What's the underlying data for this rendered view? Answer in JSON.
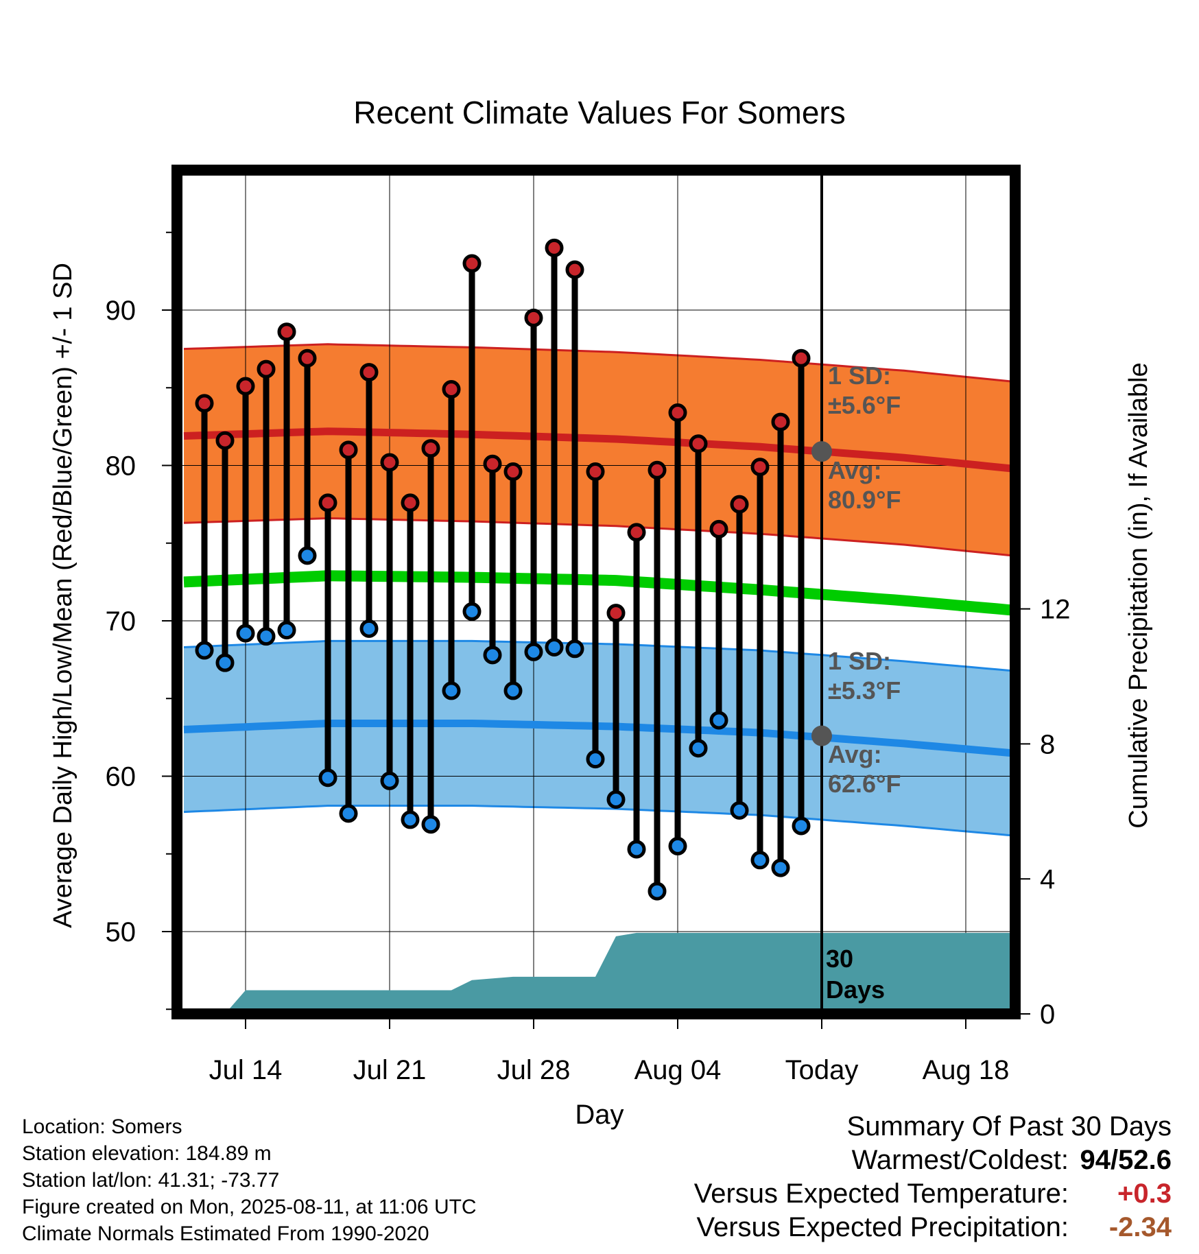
{
  "chart_data": {
    "type": "line",
    "title": "Recent Climate Values For Somers",
    "xlabel": "Day",
    "ylabel": "Average Daily High/Low/Mean (Red/Blue/Green) +/- 1 SD",
    "y2label": "Cumulative Precipitation (in), If Available",
    "x_ticks": [
      "Jul 14",
      "Jul 21",
      "Jul 28",
      "Aug 04",
      "Today",
      "Aug 18"
    ],
    "y_ticks": [
      50,
      60,
      70,
      80,
      90
    ],
    "y2_ticks": [
      0,
      4,
      8,
      12
    ],
    "ylim": [
      45.2,
      98.8
    ],
    "y2lim": [
      0,
      23.5
    ],
    "x_range_days": [
      "Jul 11",
      "Aug 21"
    ],
    "grid": true,
    "series": [
      {
        "name": "High",
        "color": "#c8252b",
        "dates": [
          "Jul 12",
          "Jul 13",
          "Jul 14",
          "Jul 15",
          "Jul 16",
          "Jul 17",
          "Jul 18",
          "Jul 19",
          "Jul 20",
          "Jul 21",
          "Jul 22",
          "Jul 23",
          "Jul 24",
          "Jul 25",
          "Jul 26",
          "Jul 27",
          "Jul 28",
          "Jul 29",
          "Jul 30",
          "Jul 31",
          "Aug 01",
          "Aug 02",
          "Aug 03",
          "Aug 04",
          "Aug 05",
          "Aug 06",
          "Aug 07",
          "Aug 08",
          "Aug 09",
          "Aug 10"
        ],
        "values": [
          84.0,
          81.6,
          85.1,
          86.2,
          88.6,
          86.9,
          77.6,
          81.0,
          86.0,
          80.2,
          77.6,
          81.1,
          84.9,
          93.0,
          80.1,
          79.6,
          89.5,
          94.0,
          92.6,
          79.6,
          70.5,
          75.7,
          79.7,
          83.4,
          81.4,
          75.9,
          77.5,
          79.9,
          82.8,
          86.9
        ]
      },
      {
        "name": "Low",
        "color": "#1e88e5",
        "dates": [
          "Jul 12",
          "Jul 13",
          "Jul 14",
          "Jul 15",
          "Jul 16",
          "Jul 17",
          "Jul 18",
          "Jul 19",
          "Jul 20",
          "Jul 21",
          "Jul 22",
          "Jul 23",
          "Jul 24",
          "Jul 25",
          "Jul 26",
          "Jul 27",
          "Jul 28",
          "Jul 29",
          "Jul 30",
          "Jul 31",
          "Aug 01",
          "Aug 02",
          "Aug 03",
          "Aug 04",
          "Aug 05",
          "Aug 06",
          "Aug 07",
          "Aug 08",
          "Aug 09",
          "Aug 10"
        ],
        "values": [
          68.1,
          67.3,
          69.2,
          69.0,
          69.4,
          74.2,
          59.9,
          57.6,
          69.5,
          59.7,
          57.2,
          56.9,
          65.5,
          70.6,
          67.8,
          65.5,
          68.0,
          68.3,
          68.2,
          61.1,
          58.5,
          55.3,
          52.6,
          55.5,
          61.8,
          63.6,
          57.8,
          54.6,
          54.1,
          56.8
        ]
      },
      {
        "name": "Normal High",
        "color": "#cc2020",
        "anchors": [
          {
            "date": "Jul 11",
            "value": 81.9
          },
          {
            "date": "Jul 18",
            "value": 82.2
          },
          {
            "date": "Jul 25",
            "value": 82.0
          },
          {
            "date": "Aug 01",
            "value": 81.7
          },
          {
            "date": "Aug 08",
            "value": 81.2
          },
          {
            "date": "Aug 15",
            "value": 80.5
          },
          {
            "date": "Aug 21",
            "value": 79.7
          }
        ]
      },
      {
        "name": "Normal Low",
        "color": "#1e88e5",
        "anchors": [
          {
            "date": "Jul 11",
            "value": 63.0
          },
          {
            "date": "Jul 18",
            "value": 63.4
          },
          {
            "date": "Jul 25",
            "value": 63.4
          },
          {
            "date": "Aug 01",
            "value": 63.2
          },
          {
            "date": "Aug 08",
            "value": 62.8
          },
          {
            "date": "Aug 15",
            "value": 62.1
          },
          {
            "date": "Aug 21",
            "value": 61.4
          }
        ]
      },
      {
        "name": "Normal Mean",
        "color": "#00cc00",
        "anchors": [
          {
            "date": "Jul 11",
            "value": 72.5
          },
          {
            "date": "Jul 18",
            "value": 72.9
          },
          {
            "date": "Jul 25",
            "value": 72.8
          },
          {
            "date": "Aug 01",
            "value": 72.6
          },
          {
            "date": "Aug 08",
            "value": 72.0
          },
          {
            "date": "Aug 15",
            "value": 71.3
          },
          {
            "date": "Aug 21",
            "value": 70.6
          }
        ]
      },
      {
        "name": "Cumulative Precipitation",
        "color": "#4a9aa3",
        "steps": [
          {
            "date": "Jul 13",
            "value": 0.0
          },
          {
            "date": "Jul 14",
            "value": 0.7
          },
          {
            "date": "Jul 24",
            "value": 0.7
          },
          {
            "date": "Jul 25",
            "value": 1.0
          },
          {
            "date": "Jul 27",
            "value": 1.1
          },
          {
            "date": "Jul 31",
            "value": 1.1
          },
          {
            "date": "Aug 01",
            "value": 2.3
          },
          {
            "date": "Aug 02",
            "value": 2.4
          },
          {
            "date": "Aug 21",
            "value": 2.4
          }
        ]
      }
    ],
    "high_sd_f": 5.6,
    "low_sd_f": 5.3,
    "today_high_avg_f": 80.9,
    "today_low_avg_f": 62.6,
    "annotations": {
      "high_sd": "1 SD:",
      "high_sd_val": "±5.6°F",
      "high_avg": "Avg:",
      "high_avg_val": "80.9°F",
      "low_sd": "1 SD:",
      "low_sd_val": "±5.3°F",
      "low_avg": "Avg:",
      "low_avg_val": "62.6°F",
      "precip_days_num": "30",
      "precip_days_word": "Days"
    }
  },
  "footer": {
    "location": "Location: Somers",
    "elevation": "Station elevation: 184.89 m",
    "latlon": "Station lat/lon: 41.31; -73.77",
    "created": "Figure created on Mon, 2025-08-11, at 11:06 UTC",
    "normals": "Climate Normals Estimated From 1990-2020"
  },
  "summary": {
    "title": "Summary Of Past 30 Days",
    "warmest_label": "Warmest/Coldest:",
    "warmest_value": "94/52.6",
    "temp_label": "Versus Expected Temperature:",
    "temp_value": "+0.3",
    "precip_label": "Versus Expected Precipitation:",
    "precip_value": "-2.34"
  }
}
